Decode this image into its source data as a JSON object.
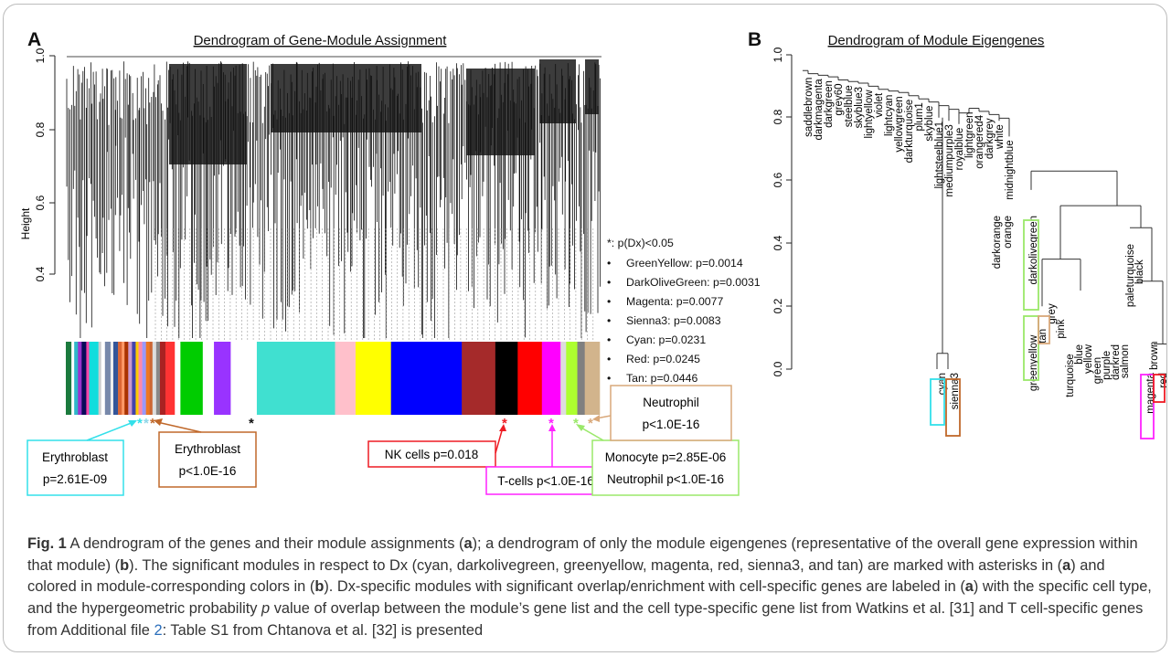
{
  "panel_a": {
    "label": "A",
    "title": "Dendrogram of Gene-Module Assignment",
    "y_axis_label": "Height",
    "y_ticks": [
      "1.0",
      "0.8",
      "0.6",
      "0.4"
    ],
    "legend": {
      "header": "*: p(Dx)<0.05",
      "bullet": "•",
      "items": [
        "GreenYellow: p=0.0014",
        "DarkOliveGreen: p=0.0031",
        "Magenta: p=0.0077",
        "Sienna3: p=0.0083",
        "Cyan: p=0.0231",
        "Red: p=0.0245",
        "Tan: p=0.0446"
      ]
    },
    "color_bar": [
      "#1b7a3d",
      "#ffffff",
      "#2fb7c8",
      "#9933cc",
      "#0a0a5a",
      "#ff44aa",
      "#11dddd",
      "#cccccc",
      "#ffffff",
      "#7788aa",
      "#eeeeee",
      "#335599",
      "#dd6633",
      "#ff9966",
      "#aa3300",
      "#cc99cc",
      "#4444aa",
      "#ffcc00",
      "#ff88aa",
      "#9999ff",
      "#ee7722",
      "#cc6633",
      "#dddddd",
      "#888888",
      "#aa2222",
      "#ff3333",
      "#ffffff",
      "#00cc00",
      "#ffffff",
      "#9933ff",
      "#ffffff",
      "#40e0d0",
      "#ffc0cb",
      "#ffff00",
      "#0000ff",
      "#a52a2a",
      "#000000",
      "#ff0000",
      "#ff00ff",
      "#dddddd",
      "#adff2f",
      "#808080",
      "#d2b48c"
    ],
    "asterisk": "*",
    "callouts": {
      "erythro1": [
        "Erythroblast",
        "p=2.61E-09"
      ],
      "erythro2": [
        "Erythroblast",
        "p<1.0E-16"
      ],
      "nk": "NK cells p=0.018",
      "tcells": "T-cells p<1.0E-16",
      "mono": [
        "Monocyte p=2.85E-06",
        "Neutrophil p<1.0E-16"
      ],
      "neutro": [
        "Neutrophil",
        "p<1.0E-16"
      ]
    },
    "colors": {
      "cyan": "#33e0ea",
      "sienna": "#c0682a",
      "red": "#ee1c24",
      "magenta": "#ff22ff",
      "greenyellow": "#9ae86a",
      "tan": "#d9a87a"
    }
  },
  "panel_b": {
    "label": "B",
    "title": "Dendrogram of Module Eigengenes",
    "y_ticks": [
      "1.0",
      "0.8",
      "0.6",
      "0.4",
      "0.2",
      "0.0"
    ],
    "leaves_upper": [
      "saddlebrown",
      "darkmagenta",
      "darkgreen",
      "grey60",
      "steelblue",
      "skyblue3",
      "lightyellow",
      "violet",
      "lightcyan",
      "yellowgreen",
      "darkturquoise",
      "plum1",
      "skyblue",
      "lightsteelblue1",
      "mediumpurple3",
      "royalblue",
      "lightgreen",
      "orangered4",
      "darkgrey",
      "white",
      "midnightblue"
    ],
    "leaves_lower": [
      "cyan",
      "sienna3",
      "darkorange",
      "orange",
      "darkolivegreen",
      "greenyellow",
      "tan",
      "grey",
      "pink",
      "turquoise",
      "blue",
      "yellow",
      "green",
      "purple",
      "darkred",
      "salmon",
      "paleturquoise",
      "black",
      "brown",
      "magenta",
      "red"
    ]
  },
  "caption": {
    "fig_label": "Fig. 1",
    "p1": " A dendrogram of the genes and their module assignments (",
    "a": "a",
    "p2": "); a dendrogram of only the module eigengenes (representative of the overall gene expression within that module) (",
    "b": "b",
    "p3": "). The significant modules in respect to Dx (cyan, darkolivegreen, greenyellow, magenta, red, sienna3, and tan) are marked with asterisks in (",
    "a2": "a",
    "p4": ") and colored in module-corresponding colors in (",
    "b2": "b",
    "p5": "). Dx-specific modules with significant overlap/enrichment with cell-specific genes are labeled in (",
    "a3": "a",
    "p6": ") with the specific cell type, and the hypergeometric probability ",
    "pval": "p",
    "p7": " value of overlap between the module’s gene list and the cell type-specific gene list from Watkins et al. [31] and T cell-specific genes from Additional file ",
    "file": "2",
    "p8": ": Table S1 from Chtanova et al. [32] is presented"
  }
}
